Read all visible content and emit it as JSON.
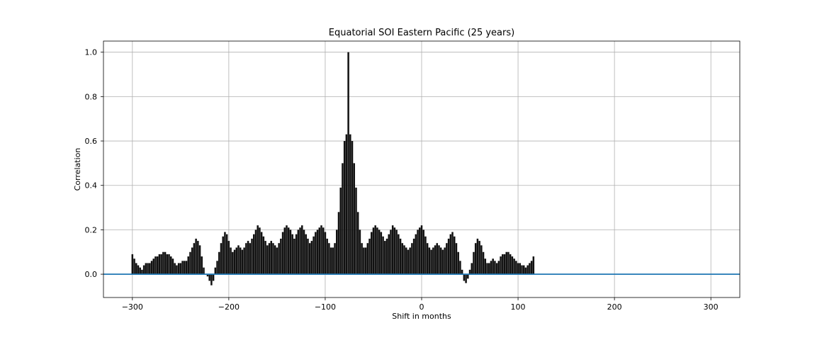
{
  "chart_data": {
    "type": "bar",
    "title": "Equatorial SOI Eastern Pacific (25 years)",
    "xlabel": "Shift in months",
    "ylabel": "Correlation",
    "xlim": [
      -330,
      330
    ],
    "ylim": [
      -0.105,
      1.05
    ],
    "xticks": [
      -300,
      -200,
      -100,
      0,
      100,
      200,
      300
    ],
    "xtick_labels": [
      "−300",
      "−200",
      "−100",
      "0",
      "100",
      "200",
      "300"
    ],
    "yticks": [
      0.0,
      0.2,
      0.4,
      0.6,
      0.8,
      1.0
    ],
    "ytick_labels": [
      "0.0",
      "0.2",
      "0.4",
      "0.6",
      "0.8",
      "1.0"
    ],
    "grid": true,
    "series": [
      {
        "x_start": -300,
        "x_step": 2,
        "values": [
          0.09,
          0.07,
          0.05,
          0.04,
          0.03,
          0.02,
          0.04,
          0.05,
          0.05,
          0.05,
          0.06,
          0.07,
          0.08,
          0.08,
          0.09,
          0.09,
          0.1,
          0.1,
          0.09,
          0.09,
          0.08,
          0.07,
          0.05,
          0.04,
          0.05,
          0.05,
          0.06,
          0.06,
          0.06,
          0.08,
          0.1,
          0.12,
          0.14,
          0.16,
          0.15,
          0.13,
          0.08,
          0.03,
          0.0,
          -0.01,
          -0.03,
          -0.05,
          -0.03,
          0.03,
          0.06,
          0.1,
          0.14,
          0.17,
          0.19,
          0.18,
          0.15,
          0.12,
          0.1,
          0.11,
          0.12,
          0.13,
          0.12,
          0.11,
          0.12,
          0.14,
          0.15,
          0.14,
          0.16,
          0.18,
          0.2,
          0.22,
          0.21,
          0.19,
          0.17,
          0.15,
          0.13,
          0.14,
          0.15,
          0.14,
          0.13,
          0.12,
          0.14,
          0.16,
          0.19,
          0.21,
          0.22,
          0.21,
          0.2,
          0.18,
          0.16,
          0.18,
          0.2,
          0.21,
          0.22,
          0.2,
          0.18,
          0.16,
          0.14,
          0.15,
          0.17,
          0.19,
          0.2,
          0.21,
          0.22,
          0.21,
          0.19,
          0.16,
          0.14,
          0.12,
          0.12,
          0.14,
          0.2,
          0.28,
          0.39,
          0.5,
          0.6,
          0.63,
          1.0,
          0.63,
          0.6,
          0.5,
          0.39,
          0.28,
          0.2,
          0.14,
          0.12,
          0.12,
          0.14,
          0.16,
          0.19,
          0.21,
          0.22,
          0.21,
          0.2,
          0.19,
          0.17,
          0.15,
          0.16,
          0.18,
          0.2,
          0.22,
          0.21,
          0.2,
          0.18,
          0.16,
          0.14,
          0.13,
          0.12,
          0.11,
          0.12,
          0.14,
          0.16,
          0.18,
          0.2,
          0.21,
          0.22,
          0.2,
          0.17,
          0.14,
          0.12,
          0.11,
          0.12,
          0.13,
          0.14,
          0.13,
          0.12,
          0.11,
          0.12,
          0.14,
          0.16,
          0.18,
          0.19,
          0.17,
          0.14,
          0.1,
          0.06,
          0.02,
          -0.03,
          -0.04,
          -0.02,
          0.02,
          0.05,
          0.1,
          0.14,
          0.16,
          0.15,
          0.13,
          0.1,
          0.07,
          0.05,
          0.05,
          0.06,
          0.07,
          0.06,
          0.05,
          0.06,
          0.08,
          0.09,
          0.09,
          0.1,
          0.1,
          0.09,
          0.08,
          0.07,
          0.06,
          0.05,
          0.05,
          0.04,
          0.04,
          0.03,
          0.04,
          0.05,
          0.06,
          0.08
        ]
      }
    ],
    "baseline": 0.0,
    "bar_color": "#111111",
    "baseline_color": "#1f77b4",
    "grid_color": "#b0b0b0"
  }
}
